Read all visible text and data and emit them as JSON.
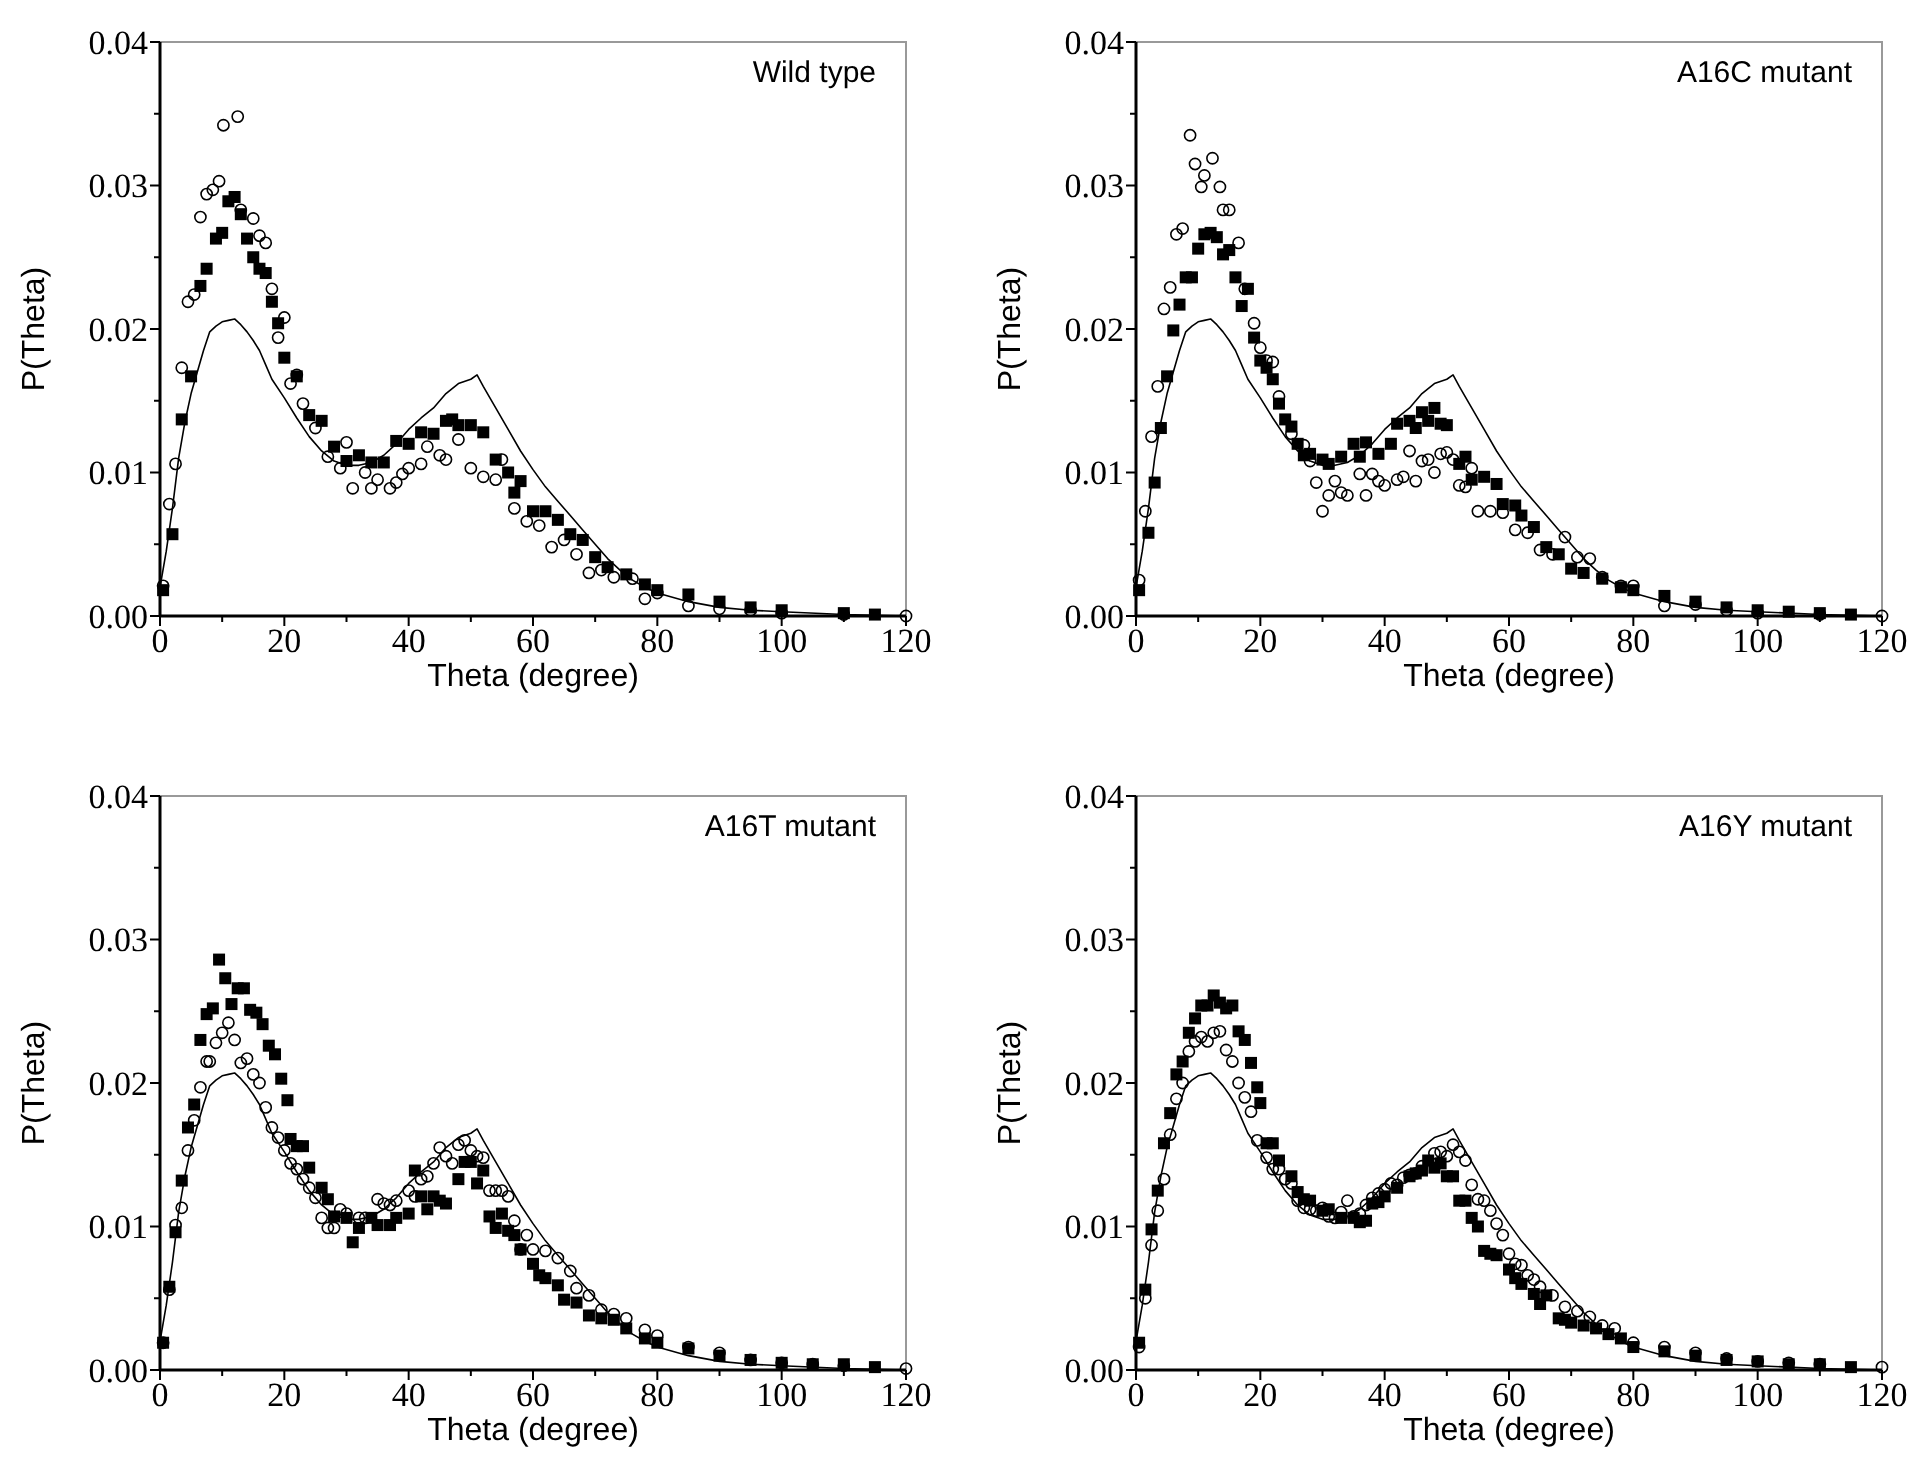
{
  "chart_data": [
    {
      "type": "scatter",
      "title": "Wild type",
      "xlabel": "Theta (degree)",
      "ylabel": "P(Theta)",
      "xlim": [
        0,
        120
      ],
      "ylim": [
        0,
        0.04
      ],
      "xticks": [
        0,
        {
          "value": 10,
          "label": null
        },
        20,
        {
          "value": 30,
          "label": null
        },
        40,
        {
          "value": 50,
          "label": null
        },
        60,
        {
          "value": 70,
          "label": null
        },
        80,
        {
          "value": 90,
          "label": null
        },
        100,
        {
          "value": 110,
          "label": null
        },
        120
      ],
      "yticks": [
        {
          "value": 0,
          "label": "0.00"
        },
        {
          "value": 0.005,
          "label": null
        },
        {
          "value": 0.01,
          "label": "0.01"
        },
        {
          "value": 0.015,
          "label": null
        },
        {
          "value": 0.02,
          "label": "0.02"
        },
        {
          "value": 0.025,
          "label": null
        },
        {
          "value": 0.03,
          "label": "0.03"
        },
        {
          "value": 0.035,
          "label": null
        },
        {
          "value": 0.04,
          "label": "0.04"
        }
      ],
      "grid": false,
      "series": [
        {
          "type": "line",
          "color": "#000000",
          "marker": "none",
          "line_style": "solid",
          "x": [
            0,
            1,
            2,
            3,
            4,
            5,
            6,
            7,
            8,
            9,
            10,
            11,
            12,
            13,
            14,
            15,
            16,
            17,
            18,
            20,
            22,
            24,
            26,
            28,
            30,
            32,
            34,
            36,
            38,
            40,
            42,
            44,
            46,
            48,
            50,
            51,
            52,
            54,
            56,
            58,
            60,
            62,
            64,
            66,
            68,
            70,
            72,
            74,
            76,
            78,
            80,
            85,
            90,
            95,
            100,
            110,
            120
          ],
          "values": [
            0.002,
            0.0045,
            0.0075,
            0.011,
            0.0135,
            0.0155,
            0.017,
            0.0185,
            0.0198,
            0.0202,
            0.0205,
            0.0206,
            0.0207,
            0.0203,
            0.0198,
            0.0192,
            0.0185,
            0.0175,
            0.0165,
            0.0152,
            0.0138,
            0.0125,
            0.0115,
            0.0108,
            0.0105,
            0.0105,
            0.0107,
            0.0112,
            0.012,
            0.013,
            0.0138,
            0.0145,
            0.0155,
            0.0162,
            0.0165,
            0.0168,
            0.016,
            0.0145,
            0.013,
            0.0115,
            0.0102,
            0.009,
            0.008,
            0.007,
            0.006,
            0.005,
            0.004,
            0.0032,
            0.0025,
            0.002,
            0.0016,
            0.001,
            0.0006,
            0.0004,
            0.0003,
            0.0001,
            0
          ]
        },
        {
          "type": "scatter",
          "color": "#000000",
          "marker": "square",
          "x": [
            0.5,
            2,
            3.5,
            5,
            6.5,
            7.5,
            9,
            10,
            11,
            12,
            13,
            14,
            15,
            16,
            17,
            18,
            19,
            20,
            22,
            24,
            26,
            28,
            30,
            32,
            34,
            36,
            38,
            40,
            42,
            44,
            46,
            47,
            48,
            50,
            52,
            54,
            56,
            57,
            58,
            60,
            62,
            64,
            66,
            68,
            70,
            72,
            75,
            78,
            80,
            85,
            90,
            95,
            100,
            110,
            115
          ],
          "values": [
            0.0018,
            0.0057,
            0.0137,
            0.0167,
            0.023,
            0.0242,
            0.0263,
            0.0267,
            0.0289,
            0.0292,
            0.028,
            0.0263,
            0.025,
            0.0242,
            0.0239,
            0.0219,
            0.0204,
            0.018,
            0.0167,
            0.014,
            0.0136,
            0.0118,
            0.0108,
            0.0112,
            0.0107,
            0.0107,
            0.0122,
            0.012,
            0.0128,
            0.0127,
            0.0136,
            0.0137,
            0.0133,
            0.0133,
            0.0128,
            0.0109,
            0.01,
            0.0086,
            0.0094,
            0.0073,
            0.0073,
            0.0067,
            0.0057,
            0.0053,
            0.0041,
            0.0034,
            0.0029,
            0.0022,
            0.0018,
            0.0015,
            0.001,
            0.0006,
            0.0004,
            0.0002,
            0.0001
          ]
        },
        {
          "type": "scatter",
          "color": "#000000",
          "marker": "circle",
          "x": [
            0.5,
            1.5,
            2.5,
            3.5,
            4.5,
            5.5,
            6.5,
            7.5,
            8.5,
            9.5,
            10.2,
            12.5,
            13,
            15,
            16,
            17,
            18,
            19,
            20,
            21,
            22,
            23,
            25,
            27,
            29,
            30,
            31,
            33,
            34,
            35,
            37,
            38,
            39,
            40,
            42,
            43,
            45,
            46,
            48,
            50,
            52,
            54,
            55,
            57,
            59,
            61,
            63,
            65,
            67,
            69,
            71,
            73,
            76,
            78,
            80,
            85,
            90,
            95,
            100,
            110,
            120
          ],
          "values": [
            0.0021,
            0.0078,
            0.0106,
            0.0173,
            0.0219,
            0.0224,
            0.0278,
            0.0294,
            0.0297,
            0.0303,
            0.0342,
            0.0348,
            0.0283,
            0.0277,
            0.0265,
            0.026,
            0.0228,
            0.0194,
            0.0208,
            0.0162,
            0.0168,
            0.0148,
            0.0131,
            0.0111,
            0.0103,
            0.0121,
            0.0089,
            0.01,
            0.0089,
            0.0095,
            0.0089,
            0.0093,
            0.0099,
            0.0103,
            0.0106,
            0.0118,
            0.0112,
            0.0109,
            0.0123,
            0.0103,
            0.0097,
            0.0095,
            0.0109,
            0.0075,
            0.0066,
            0.0063,
            0.0048,
            0.0053,
            0.0043,
            0.003,
            0.0032,
            0.0027,
            0.0026,
            0.0012,
            0.0016,
            0.0007,
            0.0005,
            0.0004,
            0.0002,
            0.0001,
            0
          ]
        }
      ]
    },
    {
      "type": "scatter",
      "title": "A16C mutant",
      "xlabel": "Theta (degree)",
      "ylabel": "P(Theta)",
      "xlim": [
        0,
        120
      ],
      "ylim": [
        0,
        0.04
      ],
      "xticks": [
        0,
        {
          "value": 10,
          "label": null
        },
        20,
        {
          "value": 30,
          "label": null
        },
        40,
        {
          "value": 50,
          "label": null
        },
        60,
        {
          "value": 70,
          "label": null
        },
        80,
        {
          "value": 90,
          "label": null
        },
        100,
        {
          "value": 110,
          "label": null
        },
        120
      ],
      "yticks": [
        {
          "value": 0,
          "label": "0.00"
        },
        {
          "value": 0.005,
          "label": null
        },
        {
          "value": 0.01,
          "label": "0.01"
        },
        {
          "value": 0.015,
          "label": null
        },
        {
          "value": 0.02,
          "label": "0.02"
        },
        {
          "value": 0.025,
          "label": null
        },
        {
          "value": 0.03,
          "label": "0.03"
        },
        {
          "value": 0.035,
          "label": null
        },
        {
          "value": 0.04,
          "label": "0.04"
        }
      ],
      "grid": false,
      "series": [
        {
          "type": "line",
          "color": "#000000",
          "marker": "none",
          "line_style": "solid",
          "x": [
            0,
            1,
            2,
            3,
            4,
            5,
            6,
            7,
            8,
            9,
            10,
            11,
            12,
            13,
            14,
            15,
            16,
            17,
            18,
            20,
            22,
            24,
            26,
            28,
            30,
            32,
            34,
            36,
            38,
            40,
            42,
            44,
            46,
            48,
            50,
            51,
            52,
            54,
            56,
            58,
            60,
            62,
            64,
            66,
            68,
            70,
            72,
            74,
            76,
            78,
            80,
            85,
            90,
            95,
            100,
            110,
            120
          ],
          "values": [
            0.002,
            0.0045,
            0.0075,
            0.011,
            0.0135,
            0.0155,
            0.017,
            0.0185,
            0.0198,
            0.0202,
            0.0205,
            0.0206,
            0.0207,
            0.0203,
            0.0198,
            0.0192,
            0.0185,
            0.0175,
            0.0165,
            0.0152,
            0.0138,
            0.0125,
            0.0115,
            0.0108,
            0.0105,
            0.0105,
            0.0107,
            0.0112,
            0.012,
            0.013,
            0.0138,
            0.0145,
            0.0155,
            0.0162,
            0.0165,
            0.0168,
            0.016,
            0.0145,
            0.013,
            0.0115,
            0.0102,
            0.009,
            0.008,
            0.007,
            0.006,
            0.005,
            0.004,
            0.0032,
            0.0025,
            0.002,
            0.0016,
            0.001,
            0.0006,
            0.0004,
            0.0003,
            0.0001,
            0
          ]
        },
        {
          "type": "scatter",
          "color": "#000000",
          "marker": "square",
          "x": [
            0.5,
            2,
            3,
            4,
            5,
            6,
            7,
            8,
            9,
            10,
            11,
            12,
            13,
            14,
            15,
            16,
            17,
            18,
            19,
            20,
            21,
            22,
            23,
            24,
            25,
            26,
            27,
            28,
            30,
            31,
            33,
            35,
            36,
            37,
            39,
            41,
            42,
            44,
            45,
            46,
            47,
            48,
            49,
            50,
            52,
            53,
            54,
            56,
            58,
            59,
            61,
            62,
            64,
            66,
            68,
            70,
            72,
            75,
            78,
            80,
            85,
            90,
            95,
            100,
            105,
            110,
            115
          ],
          "values": [
            0.0018,
            0.0058,
            0.0093,
            0.0131,
            0.0167,
            0.0199,
            0.0217,
            0.0236,
            0.0236,
            0.0256,
            0.0266,
            0.0267,
            0.0264,
            0.0252,
            0.0255,
            0.0236,
            0.0216,
            0.0228,
            0.0194,
            0.0178,
            0.0173,
            0.0165,
            0.0148,
            0.0137,
            0.0132,
            0.012,
            0.0112,
            0.0113,
            0.0109,
            0.0106,
            0.0111,
            0.012,
            0.0111,
            0.0121,
            0.0113,
            0.012,
            0.0134,
            0.0136,
            0.0131,
            0.0142,
            0.0136,
            0.0145,
            0.0134,
            0.0133,
            0.0106,
            0.0111,
            0.0095,
            0.0097,
            0.0092,
            0.0078,
            0.0077,
            0.007,
            0.0062,
            0.0048,
            0.0043,
            0.0033,
            0.003,
            0.0026,
            0.002,
            0.0018,
            0.0014,
            0.001,
            0.0006,
            0.0004,
            0.0003,
            0.0002,
            0.0001
          ]
        },
        {
          "type": "scatter",
          "color": "#000000",
          "marker": "circle",
          "x": [
            0.5,
            1.5,
            2.5,
            3.5,
            4.5,
            5.5,
            6.5,
            7.5,
            8.7,
            9.5,
            10.5,
            11,
            12.3,
            13.5,
            14,
            15,
            16.5,
            17.5,
            19,
            20,
            21,
            22,
            23,
            25,
            27,
            28,
            29,
            30,
            31,
            32,
            33,
            34,
            36,
            37,
            38,
            39,
            40,
            42,
            43,
            44,
            45,
            46,
            47,
            48,
            49,
            50,
            51,
            52,
            53,
            54,
            55,
            57,
            59,
            61,
            63,
            65,
            67,
            69,
            71,
            73,
            75,
            78,
            80,
            85,
            90,
            95,
            100,
            110,
            120
          ],
          "values": [
            0.0025,
            0.0073,
            0.0125,
            0.016,
            0.0214,
            0.0229,
            0.0266,
            0.027,
            0.0335,
            0.0315,
            0.0299,
            0.0307,
            0.0319,
            0.0299,
            0.0283,
            0.0283,
            0.026,
            0.0228,
            0.0204,
            0.0187,
            0.0178,
            0.0177,
            0.0153,
            0.0127,
            0.0119,
            0.0108,
            0.0093,
            0.0073,
            0.0084,
            0.0094,
            0.0086,
            0.0084,
            0.0099,
            0.0084,
            0.0099,
            0.0094,
            0.0091,
            0.0095,
            0.0097,
            0.0115,
            0.0094,
            0.0108,
            0.0109,
            0.01,
            0.0113,
            0.0114,
            0.0109,
            0.0091,
            0.009,
            0.0103,
            0.0073,
            0.0073,
            0.0072,
            0.006,
            0.0058,
            0.0046,
            0.0043,
            0.0055,
            0.0041,
            0.004,
            0.0027,
            0.0021,
            0.0021,
            0.0007,
            0.0008,
            0.0004,
            0.0002,
            0.0001,
            0
          ]
        }
      ]
    },
    {
      "type": "scatter",
      "title": "A16T mutant",
      "xlabel": "Theta (degree)",
      "ylabel": "P(Theta)",
      "xlim": [
        0,
        120
      ],
      "ylim": [
        0,
        0.04
      ],
      "xticks": [
        0,
        {
          "value": 10,
          "label": null
        },
        20,
        {
          "value": 30,
          "label": null
        },
        40,
        {
          "value": 50,
          "label": null
        },
        60,
        {
          "value": 70,
          "label": null
        },
        80,
        {
          "value": 90,
          "label": null
        },
        100,
        {
          "value": 110,
          "label": null
        },
        120
      ],
      "yticks": [
        {
          "value": 0,
          "label": "0.00"
        },
        {
          "value": 0.005,
          "label": null
        },
        {
          "value": 0.01,
          "label": "0.01"
        },
        {
          "value": 0.015,
          "label": null
        },
        {
          "value": 0.02,
          "label": "0.02"
        },
        {
          "value": 0.025,
          "label": null
        },
        {
          "value": 0.03,
          "label": "0.03"
        },
        {
          "value": 0.035,
          "label": null
        },
        {
          "value": 0.04,
          "label": "0.04"
        }
      ],
      "grid": false,
      "series": [
        {
          "type": "line",
          "color": "#000000",
          "marker": "none",
          "line_style": "solid",
          "x": [
            0,
            1,
            2,
            3,
            4,
            5,
            6,
            7,
            8,
            9,
            10,
            11,
            12,
            13,
            14,
            15,
            16,
            17,
            18,
            20,
            22,
            24,
            26,
            28,
            30,
            32,
            34,
            36,
            38,
            40,
            42,
            44,
            46,
            48,
            50,
            51,
            52,
            54,
            56,
            58,
            60,
            62,
            64,
            66,
            68,
            70,
            72,
            74,
            76,
            78,
            80,
            85,
            90,
            95,
            100,
            110,
            120
          ],
          "values": [
            0.002,
            0.0045,
            0.0075,
            0.011,
            0.0135,
            0.0155,
            0.017,
            0.0185,
            0.0198,
            0.0202,
            0.0205,
            0.0206,
            0.0207,
            0.0203,
            0.0198,
            0.0192,
            0.0185,
            0.0175,
            0.0165,
            0.0152,
            0.0138,
            0.0125,
            0.0115,
            0.0108,
            0.0105,
            0.0105,
            0.0107,
            0.0112,
            0.012,
            0.013,
            0.0138,
            0.0145,
            0.0155,
            0.0162,
            0.0165,
            0.0168,
            0.016,
            0.0145,
            0.013,
            0.0115,
            0.0102,
            0.009,
            0.008,
            0.007,
            0.006,
            0.005,
            0.004,
            0.0032,
            0.0025,
            0.002,
            0.0016,
            0.001,
            0.0006,
            0.0004,
            0.0003,
            0.0001,
            0
          ]
        },
        {
          "type": "scatter",
          "color": "#000000",
          "marker": "square",
          "x": [
            0.5,
            1.5,
            2.5,
            3.5,
            4.5,
            5.5,
            6.5,
            7.5,
            8.5,
            9.5,
            10.5,
            11.5,
            12.5,
            13.5,
            14.5,
            15.5,
            16.5,
            17.5,
            18.5,
            19.5,
            20.5,
            21,
            22,
            23,
            24,
            26,
            27,
            28,
            30,
            31,
            32,
            34,
            35,
            37,
            38,
            40,
            41,
            42,
            43,
            44,
            45,
            46,
            48,
            49,
            50,
            51,
            52,
            53,
            54,
            55,
            56,
            57,
            58,
            60,
            61,
            62,
            64,
            65,
            67,
            69,
            71,
            73,
            75,
            78,
            80,
            85,
            90,
            95,
            100,
            105,
            110,
            115
          ],
          "values": [
            0.0019,
            0.0058,
            0.0096,
            0.0132,
            0.0169,
            0.0185,
            0.023,
            0.0248,
            0.0252,
            0.0286,
            0.0273,
            0.0255,
            0.0266,
            0.0266,
            0.0251,
            0.0249,
            0.0241,
            0.0226,
            0.022,
            0.0203,
            0.0188,
            0.0161,
            0.0156,
            0.0156,
            0.0141,
            0.0127,
            0.0119,
            0.0107,
            0.0106,
            0.0089,
            0.0099,
            0.0106,
            0.0101,
            0.0101,
            0.0106,
            0.0109,
            0.0139,
            0.0121,
            0.0112,
            0.0121,
            0.0118,
            0.0116,
            0.0133,
            0.0145,
            0.0145,
            0.013,
            0.0139,
            0.0107,
            0.0099,
            0.0109,
            0.0097,
            0.0094,
            0.0084,
            0.0074,
            0.0066,
            0.0064,
            0.0059,
            0.0049,
            0.0047,
            0.0038,
            0.0036,
            0.0035,
            0.0029,
            0.0022,
            0.0019,
            0.0015,
            0.001,
            0.0007,
            0.0005,
            0.0004,
            0.0004,
            0.0002
          ]
        },
        {
          "type": "scatter",
          "color": "#000000",
          "marker": "circle",
          "x": [
            0.5,
            1.5,
            2.5,
            3.5,
            4.5,
            5.5,
            6.5,
            7.5,
            8,
            9,
            10,
            11,
            12,
            13,
            14,
            15,
            16,
            17,
            18,
            19,
            20,
            21,
            22,
            23,
            24,
            25,
            26,
            27,
            28,
            29,
            30,
            32,
            33,
            35,
            36,
            37,
            38,
            40,
            41,
            42,
            43,
            44,
            45,
            46,
            47,
            48,
            49,
            50,
            51,
            52,
            53,
            54,
            55,
            56,
            57,
            58,
            59,
            60,
            62,
            64,
            66,
            67,
            69,
            71,
            73,
            75,
            78,
            80,
            85,
            90,
            95,
            100,
            105,
            110,
            120
          ],
          "values": [
            0.0019,
            0.0056,
            0.0101,
            0.0113,
            0.0153,
            0.0174,
            0.0197,
            0.0215,
            0.0215,
            0.0228,
            0.0235,
            0.0242,
            0.023,
            0.0214,
            0.0217,
            0.0206,
            0.02,
            0.0183,
            0.0169,
            0.0162,
            0.0153,
            0.0144,
            0.014,
            0.0133,
            0.0127,
            0.012,
            0.0106,
            0.0099,
            0.0099,
            0.0112,
            0.0109,
            0.0106,
            0.0106,
            0.0119,
            0.0116,
            0.0115,
            0.0118,
            0.0125,
            0.0121,
            0.0133,
            0.0135,
            0.0144,
            0.0155,
            0.0149,
            0.0144,
            0.0157,
            0.016,
            0.0153,
            0.0149,
            0.0148,
            0.0125,
            0.0125,
            0.0125,
            0.0121,
            0.0104,
            0.0084,
            0.0094,
            0.0084,
            0.0083,
            0.0078,
            0.0069,
            0.0057,
            0.0052,
            0.0042,
            0.0039,
            0.0036,
            0.0028,
            0.0024,
            0.0016,
            0.0012,
            0.0007,
            0.0005,
            0.0004,
            0.0003,
            0.0001
          ]
        }
      ]
    },
    {
      "type": "scatter",
      "title": "A16Y mutant",
      "xlabel": "Theta (degree)",
      "ylabel": "P(Theta)",
      "xlim": [
        0,
        120
      ],
      "ylim": [
        0,
        0.04
      ],
      "xticks": [
        0,
        {
          "value": 10,
          "label": null
        },
        20,
        {
          "value": 30,
          "label": null
        },
        40,
        {
          "value": 50,
          "label": null
        },
        60,
        {
          "value": 70,
          "label": null
        },
        80,
        {
          "value": 90,
          "label": null
        },
        100,
        {
          "value": 110,
          "label": null
        },
        120
      ],
      "yticks": [
        {
          "value": 0,
          "label": "0.00"
        },
        {
          "value": 0.005,
          "label": null
        },
        {
          "value": 0.01,
          "label": "0.01"
        },
        {
          "value": 0.015,
          "label": null
        },
        {
          "value": 0.02,
          "label": "0.02"
        },
        {
          "value": 0.025,
          "label": null
        },
        {
          "value": 0.03,
          "label": "0.03"
        },
        {
          "value": 0.035,
          "label": null
        },
        {
          "value": 0.04,
          "label": "0.04"
        }
      ],
      "grid": false,
      "series": [
        {
          "type": "line",
          "color": "#000000",
          "marker": "none",
          "line_style": "solid",
          "x": [
            0,
            1,
            2,
            3,
            4,
            5,
            6,
            7,
            8,
            9,
            10,
            11,
            12,
            13,
            14,
            15,
            16,
            17,
            18,
            20,
            22,
            24,
            26,
            28,
            30,
            32,
            34,
            36,
            38,
            40,
            42,
            44,
            46,
            48,
            50,
            51,
            52,
            54,
            56,
            58,
            60,
            62,
            64,
            66,
            68,
            70,
            72,
            74,
            76,
            78,
            80,
            85,
            90,
            95,
            100,
            110,
            120
          ],
          "values": [
            0.002,
            0.0045,
            0.0075,
            0.011,
            0.0135,
            0.0155,
            0.017,
            0.0185,
            0.0198,
            0.0202,
            0.0205,
            0.0206,
            0.0207,
            0.0203,
            0.0198,
            0.0192,
            0.0185,
            0.0175,
            0.0165,
            0.0152,
            0.0138,
            0.0125,
            0.0115,
            0.0108,
            0.0105,
            0.0105,
            0.0107,
            0.0112,
            0.012,
            0.013,
            0.0138,
            0.0145,
            0.0155,
            0.0162,
            0.0165,
            0.0168,
            0.016,
            0.0145,
            0.013,
            0.0115,
            0.0102,
            0.009,
            0.008,
            0.007,
            0.006,
            0.005,
            0.004,
            0.0032,
            0.0025,
            0.002,
            0.0016,
            0.001,
            0.0006,
            0.0004,
            0.0003,
            0.0001,
            0
          ]
        },
        {
          "type": "scatter",
          "color": "#000000",
          "marker": "square",
          "x": [
            0.5,
            1.5,
            2.5,
            3.5,
            4.5,
            5.5,
            6.5,
            7.5,
            8.5,
            9.5,
            10.5,
            11.5,
            12.5,
            13.5,
            14.5,
            15.5,
            16.5,
            17.5,
            18.5,
            19.5,
            20,
            21,
            22,
            23,
            25,
            26,
            27,
            28,
            30,
            31,
            33,
            35,
            36,
            37,
            38,
            39,
            40,
            42,
            44,
            45,
            46,
            47,
            48,
            49,
            50,
            51,
            52,
            53,
            54,
            55,
            56,
            57,
            58,
            60,
            61,
            62,
            64,
            65,
            66,
            68,
            69,
            70,
            72,
            74,
            76,
            78,
            80,
            85,
            90,
            95,
            100,
            105,
            110,
            115
          ],
          "values": [
            0.0019,
            0.0056,
            0.0098,
            0.0125,
            0.0158,
            0.0179,
            0.0206,
            0.0215,
            0.0235,
            0.0245,
            0.0254,
            0.0254,
            0.0261,
            0.0256,
            0.0252,
            0.0254,
            0.0236,
            0.023,
            0.0214,
            0.0197,
            0.0186,
            0.0158,
            0.0158,
            0.0146,
            0.0135,
            0.0124,
            0.0119,
            0.0118,
            0.0111,
            0.0112,
            0.0106,
            0.0106,
            0.0103,
            0.0104,
            0.0116,
            0.0117,
            0.0121,
            0.0127,
            0.0135,
            0.0137,
            0.0139,
            0.0146,
            0.0141,
            0.0144,
            0.0135,
            0.0135,
            0.0118,
            0.0118,
            0.0106,
            0.01,
            0.0083,
            0.0081,
            0.008,
            0.007,
            0.0064,
            0.006,
            0.0053,
            0.0046,
            0.0052,
            0.0036,
            0.0035,
            0.0033,
            0.0031,
            0.0029,
            0.0025,
            0.0022,
            0.0016,
            0.0013,
            0.001,
            0.0007,
            0.0006,
            0.0004,
            0.0004,
            0.0002
          ]
        },
        {
          "type": "scatter",
          "color": "#000000",
          "marker": "circle",
          "x": [
            0.5,
            1.5,
            2.5,
            3.5,
            4.5,
            5.5,
            6.5,
            7.5,
            8.5,
            9.5,
            10.5,
            11.5,
            12.5,
            13.5,
            14.5,
            15.5,
            16.5,
            17.5,
            18.5,
            19.5,
            21,
            22,
            23,
            24,
            25,
            26,
            27,
            28,
            29,
            30,
            31,
            32,
            33,
            34,
            35,
            36,
            37,
            38,
            39,
            40,
            41,
            42,
            43,
            44,
            45,
            46,
            48,
            49,
            50,
            51,
            52,
            53,
            54,
            55,
            56,
            57,
            58,
            59,
            60,
            61,
            62,
            63,
            64,
            65,
            67,
            69,
            71,
            73,
            75,
            77,
            80,
            85,
            90,
            95,
            100,
            105,
            110,
            120
          ],
          "values": [
            0.0016,
            0.005,
            0.0087,
            0.0111,
            0.0133,
            0.0164,
            0.0189,
            0.02,
            0.0222,
            0.0229,
            0.0232,
            0.0229,
            0.0235,
            0.0236,
            0.0223,
            0.0215,
            0.02,
            0.019,
            0.018,
            0.016,
            0.0148,
            0.014,
            0.014,
            0.0133,
            0.013,
            0.0118,
            0.0113,
            0.0112,
            0.0111,
            0.0113,
            0.0107,
            0.0106,
            0.011,
            0.0118,
            0.0107,
            0.0109,
            0.0115,
            0.012,
            0.0123,
            0.0126,
            0.013,
            0.0129,
            0.0134,
            0.0136,
            0.0137,
            0.0142,
            0.0151,
            0.0152,
            0.0149,
            0.0157,
            0.0152,
            0.0146,
            0.0129,
            0.0119,
            0.0118,
            0.0111,
            0.0102,
            0.0094,
            0.0081,
            0.0074,
            0.0073,
            0.0066,
            0.0063,
            0.0058,
            0.0052,
            0.0044,
            0.0041,
            0.0037,
            0.0031,
            0.0029,
            0.0019,
            0.0016,
            0.0012,
            0.0008,
            0.0006,
            0.0005,
            0.0004,
            0.0002
          ]
        }
      ]
    }
  ]
}
